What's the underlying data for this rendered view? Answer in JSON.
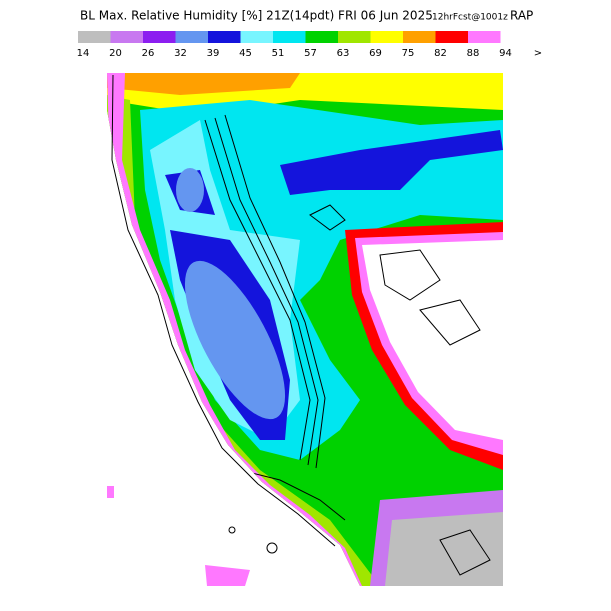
{
  "header": {
    "title": "BL Max. Relative Humidity [%] 21Z(14pdt) FRI 06 Jun 2025",
    "forecast": "12hrFcst@1001z",
    "model": "RAP"
  },
  "legend": {
    "colors": [
      "#bebebe",
      "#c878f0",
      "#8c1ef0",
      "#6496f0",
      "#1414dc",
      "#78f5ff",
      "#00e6f0",
      "#00d200",
      "#a0e600",
      "#ffff00",
      "#ffa000",
      "#ff0000",
      "#ff78ff"
    ],
    "labels": [
      "14",
      "20",
      "26",
      "32",
      "39",
      "45",
      "51",
      "57",
      "63",
      "69",
      "75",
      "82",
      "88",
      "94",
      ">"
    ]
  }
}
